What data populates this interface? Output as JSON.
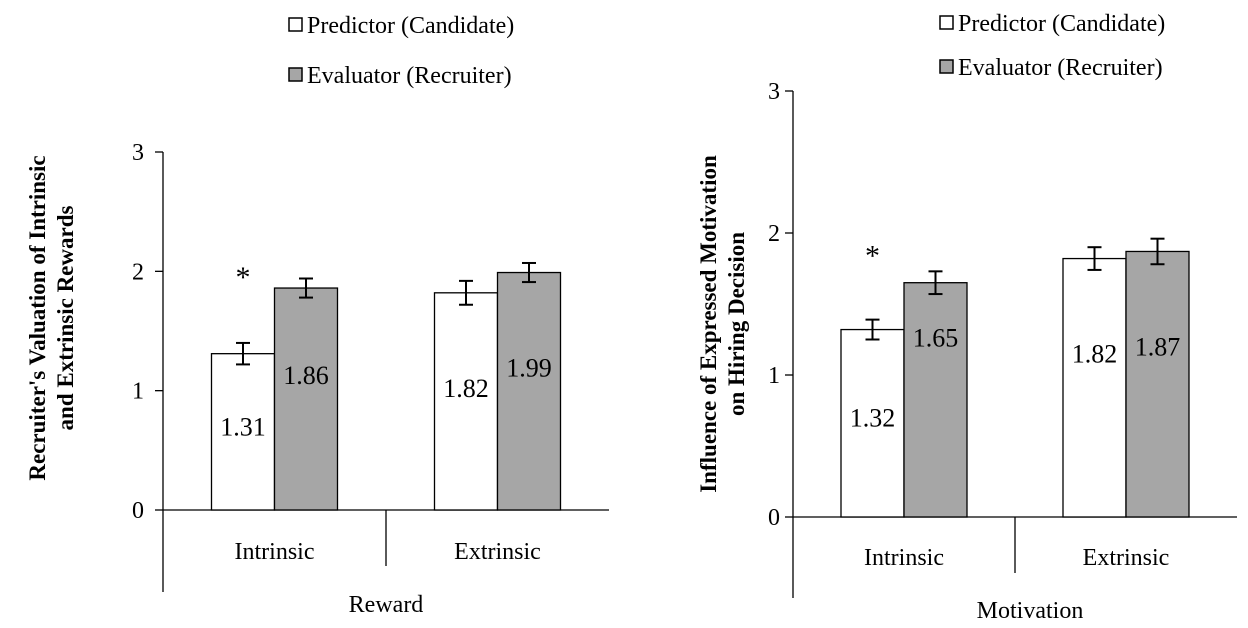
{
  "charts": [
    {
      "type": "bar",
      "xlabel": "Reward",
      "ylabel_lines": [
        "Recruiter's Valuation of Intrinsic",
        "and Extrinsic Rewards"
      ],
      "categories": [
        "Intrinsic",
        "Extrinsic"
      ],
      "yticks": [
        "0",
        "1",
        "2",
        "3"
      ],
      "ylim": [
        0,
        3
      ],
      "series": [
        {
          "name": "Predictor (Candidate)",
          "color": "#ffffff",
          "values": [
            1.31,
            1.82
          ],
          "labels": [
            "1.31",
            "1.82"
          ],
          "errors": [
            0.09,
            0.1
          ]
        },
        {
          "name": "Evaluator (Recruiter)",
          "color": "#a6a6a6",
          "values": [
            1.86,
            1.99
          ],
          "labels": [
            "1.86",
            "1.99"
          ],
          "errors": [
            0.08,
            0.08
          ]
        }
      ],
      "significance": [
        "*",
        ""
      ]
    },
    {
      "type": "bar",
      "xlabel": "Motivation",
      "ylabel_lines": [
        "Influence of Expressed Motivation",
        "on Hiring Decision"
      ],
      "categories": [
        "Intrinsic",
        "Extrinsic"
      ],
      "yticks": [
        "0",
        "1",
        "2",
        "3"
      ],
      "ylim": [
        0,
        3
      ],
      "series": [
        {
          "name": "Predictor (Candidate)",
          "color": "#ffffff",
          "values": [
            1.32,
            1.82
          ],
          "labels": [
            "1.32",
            "1.82"
          ],
          "errors": [
            0.07,
            0.08
          ]
        },
        {
          "name": "Evaluator (Recruiter)",
          "color": "#a6a6a6",
          "values": [
            1.65,
            1.87
          ],
          "labels": [
            "1.65",
            "1.87"
          ],
          "errors": [
            0.08,
            0.09
          ]
        }
      ],
      "significance": [
        "*",
        ""
      ]
    }
  ]
}
